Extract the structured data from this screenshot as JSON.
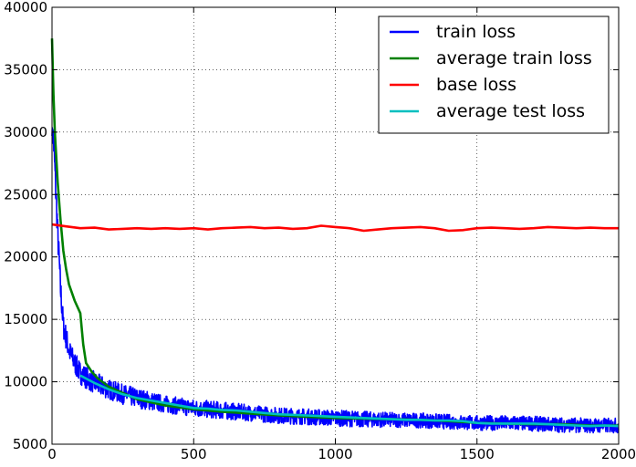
{
  "chart_data": {
    "type": "line",
    "title": "",
    "xlabel": "",
    "ylabel": "",
    "xlim": [
      0,
      2000
    ],
    "ylim": [
      5000,
      40000
    ],
    "x_ticks": [
      0,
      500,
      1000,
      1500,
      2000
    ],
    "y_ticks": [
      5000,
      10000,
      15000,
      20000,
      25000,
      30000,
      35000,
      40000
    ],
    "x_tick_labels": [
      "0",
      "500",
      "1000",
      "1500",
      "2000"
    ],
    "y_tick_labels": [
      "5000",
      "10000",
      "15000",
      "20000",
      "25000",
      "30000",
      "35000",
      "40000"
    ],
    "grid": true,
    "legend_position": "top-right",
    "legend_entries": [
      "train loss",
      "average train loss",
      "base loss",
      "average test loss"
    ],
    "series": [
      {
        "name": "train loss",
        "color": "#0000ff",
        "noisy": true,
        "x": [
          0,
          5,
          10,
          20,
          30,
          40,
          50,
          60,
          80,
          100,
          130,
          160,
          200,
          250,
          300,
          400,
          500,
          600,
          700,
          800,
          900,
          1000,
          1100,
          1200,
          1300,
          1400,
          1500,
          1600,
          1700,
          1800,
          1900,
          2000
        ],
        "y": [
          30000,
          29500,
          27000,
          22000,
          17500,
          14500,
          13500,
          12500,
          11500,
          10700,
          10200,
          9800,
          9400,
          9000,
          8700,
          8200,
          7900,
          7700,
          7500,
          7300,
          7200,
          7100,
          7000,
          6950,
          6900,
          6800,
          6700,
          6700,
          6650,
          6550,
          6500,
          6500
        ],
        "noise": [
          300,
          1500,
          1500,
          1200,
          1200,
          1000,
          1000,
          900,
          900,
          900,
          900,
          900,
          800,
          800,
          800,
          700,
          700,
          700,
          650,
          650,
          650,
          650,
          650,
          600,
          600,
          600,
          600,
          600,
          600,
          600,
          600,
          600
        ]
      },
      {
        "name": "average train loss",
        "color": "#008000",
        "x": [
          0,
          5,
          10,
          20,
          30,
          40,
          50,
          60,
          80,
          100,
          110,
          120,
          140,
          160,
          200,
          300,
          400,
          500,
          600,
          700,
          800,
          900,
          1000,
          1100,
          1200,
          1300,
          1400,
          1500,
          1600,
          1700,
          1800,
          1900,
          2000
        ],
        "y": [
          37500,
          33000,
          30000,
          26000,
          23000,
          20500,
          19000,
          17800,
          16500,
          15500,
          13000,
          11500,
          10800,
          10300,
          9600,
          8600,
          8100,
          7800,
          7600,
          7450,
          7300,
          7200,
          7100,
          7050,
          7000,
          6950,
          6850,
          6700,
          6650,
          6600,
          6600,
          6500,
          6500
        ]
      },
      {
        "name": "base loss",
        "color": "#ff0000",
        "x": [
          0,
          50,
          100,
          150,
          200,
          250,
          300,
          350,
          400,
          450,
          500,
          550,
          600,
          650,
          700,
          750,
          800,
          850,
          900,
          950,
          1000,
          1050,
          1100,
          1150,
          1200,
          1250,
          1300,
          1350,
          1400,
          1450,
          1500,
          1550,
          1600,
          1650,
          1700,
          1750,
          1800,
          1850,
          1900,
          1950,
          2000
        ],
        "y": [
          22600,
          22450,
          22300,
          22350,
          22200,
          22250,
          22300,
          22250,
          22300,
          22250,
          22300,
          22200,
          22300,
          22350,
          22400,
          22300,
          22350,
          22250,
          22300,
          22500,
          22400,
          22300,
          22100,
          22200,
          22300,
          22350,
          22400,
          22300,
          22100,
          22150,
          22300,
          22350,
          22300,
          22250,
          22300,
          22400,
          22350,
          22300,
          22350,
          22300,
          22300
        ]
      },
      {
        "name": "average test loss",
        "color": "#00bfbf",
        "x": [
          100,
          150,
          200,
          250,
          300,
          350,
          400,
          450,
          500,
          550,
          600,
          650,
          700,
          750,
          800,
          850,
          900,
          950,
          1000,
          1050,
          1100,
          1150,
          1200,
          1250,
          1300,
          1350,
          1400,
          1450,
          1500,
          1550,
          1600,
          1650,
          1700,
          1750,
          1800,
          1850,
          1900,
          1950,
          2000
        ],
        "y": [
          10500,
          9900,
          9400,
          9000,
          8700,
          8500,
          8300,
          8100,
          7900,
          7850,
          7750,
          7700,
          7600,
          7500,
          7400,
          7350,
          7300,
          7250,
          7200,
          7150,
          7100,
          7050,
          7000,
          6950,
          6950,
          6900,
          6900,
          6850,
          6700,
          6650,
          6650,
          6650,
          6650,
          6600,
          6550,
          6500,
          6450,
          6500,
          6450
        ]
      }
    ]
  }
}
